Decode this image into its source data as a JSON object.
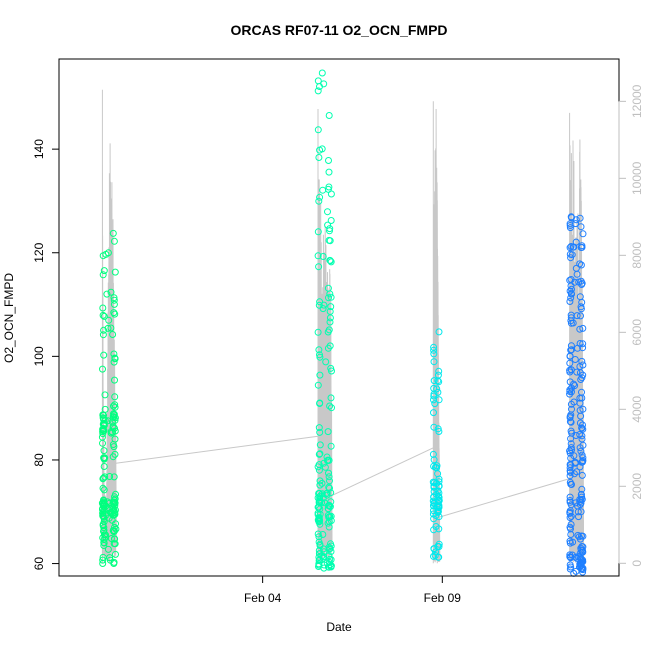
{
  "chart_data": {
    "type": "scatter",
    "title": "ORCAS RF07-11 O2_OCN_FMPD",
    "xlabel": "Date",
    "ylabel": "O2_OCN_FMPD",
    "x_axis": {
      "type": "date",
      "ticks": [
        {
          "value": "2016-02-04",
          "label": "Feb 04"
        },
        {
          "value": "2016-02-09",
          "label": "Feb 09"
        }
      ],
      "xlim": [
        "2016-01-29T08:00",
        "2016-02-13T22:00"
      ]
    },
    "y_axis_left": {
      "ticks": [
        60,
        80,
        100,
        120,
        140
      ],
      "ylim": [
        57.6,
        157.4
      ]
    },
    "y_axis_right": {
      "ticks": [
        0,
        2000,
        4000,
        6000,
        8000,
        10000,
        12000
      ],
      "ylim": [
        -330,
        13100
      ],
      "color": "#bfbfbf"
    },
    "grid": false,
    "legend": "none",
    "colors": {
      "rf07": "#00ff7f",
      "rf08": "#00ffb0",
      "rf10": "#00e8ec",
      "rf11": "#1e7fff",
      "altitude_line": "#c8c8c8"
    },
    "series": [
      {
        "color_key": "rf07",
        "t_start": "2016-01-30T13:00",
        "t_end": "2016-01-30T22:00",
        "y_min": 60,
        "y_max": 125,
        "bands": [
          [
            60,
            62,
            8
          ],
          [
            62,
            72,
            45
          ],
          [
            69,
            72,
            25
          ],
          [
            72,
            80,
            14
          ],
          [
            80,
            86,
            14
          ],
          [
            85,
            89,
            35
          ],
          [
            89,
            106,
            18
          ],
          [
            104,
            112,
            10
          ],
          [
            112,
            125,
            10
          ]
        ]
      },
      {
        "color_key": "rf08",
        "t_start": "2016-02-05T13:00",
        "t_end": "2016-02-05T22:00",
        "y_min": 59,
        "y_max": 155,
        "bands": [
          [
            59,
            63,
            30
          ],
          [
            63,
            68,
            12
          ],
          [
            68,
            74,
            45
          ],
          [
            74,
            80,
            16
          ],
          [
            80,
            95,
            14
          ],
          [
            95,
            115,
            24
          ],
          [
            115,
            128,
            14
          ],
          [
            128,
            140,
            10
          ],
          [
            140,
            155,
            8
          ]
        ]
      },
      {
        "color_key": "rf10",
        "t_start": "2016-02-08T18:00",
        "t_end": "2016-02-08T22:00",
        "y_min": 61,
        "y_max": 107,
        "bands": [
          [
            61,
            66,
            10
          ],
          [
            66,
            70,
            8
          ],
          [
            70,
            76,
            35
          ],
          [
            76,
            85,
            8
          ],
          [
            85,
            97,
            16
          ],
          [
            97,
            107,
            6
          ]
        ]
      },
      {
        "color_key": "rf11",
        "t_start": "2016-02-12T13:00",
        "t_end": "2016-02-12T22:00",
        "y_min": 58,
        "y_max": 127,
        "bands": [
          [
            58,
            62,
            35
          ],
          [
            62,
            70,
            25
          ],
          [
            70,
            85,
            55
          ],
          [
            85,
            100,
            45
          ],
          [
            100,
            115,
            35
          ],
          [
            115,
            127,
            25
          ]
        ]
      }
    ],
    "altitude_line": {
      "axis": "right",
      "color_key": "altitude_line",
      "connectors": [
        {
          "from": [
            "2016-01-30T22:00",
            2600
          ],
          "to": [
            "2016-02-05T13:00",
            3300
          ]
        },
        {
          "from": [
            "2016-02-05T19:00",
            1700
          ],
          "to": [
            "2016-02-08T18:00",
            3000
          ]
        },
        {
          "from": [
            "2016-02-08T22:00",
            1200
          ],
          "to": [
            "2016-02-12T13:00",
            2200
          ]
        }
      ],
      "flights": [
        {
          "t_start": "2016-01-30T13:00",
          "t_end": "2016-01-30T22:00",
          "peak": 12300,
          "spikes": [
            [
              0.0,
              12300
            ],
            [
              0.05,
              6000
            ],
            [
              0.12,
              2200
            ],
            [
              0.3,
              1500
            ],
            [
              0.5,
              11900
            ],
            [
              0.6,
              12000
            ],
            [
              0.78,
              9000
            ],
            [
              0.9,
              7500
            ],
            [
              1.0,
              3000
            ]
          ]
        },
        {
          "t_start": "2016-02-05T13:00",
          "t_end": "2016-02-05T22:00",
          "peak": 11800,
          "spikes": [
            [
              0.0,
              11800
            ],
            [
              0.1,
              11600
            ],
            [
              0.2,
              9500
            ],
            [
              0.35,
              8000
            ],
            [
              0.5,
              10500
            ],
            [
              0.65,
              8200
            ],
            [
              0.8,
              7000
            ],
            [
              0.9,
              9200
            ],
            [
              1.0,
              5000
            ]
          ]
        },
        {
          "t_start": "2016-02-08T18:00",
          "t_end": "2016-02-08T22:00",
          "peak": 12000,
          "spikes": [
            [
              0.0,
              8000
            ],
            [
              0.2,
              11600
            ],
            [
              0.5,
              12000
            ],
            [
              0.7,
              9000
            ],
            [
              1.0,
              3000
            ]
          ]
        },
        {
          "t_start": "2016-02-12T13:00",
          "t_end": "2016-02-12T22:00",
          "peak": 11700,
          "spikes": [
            [
              0.0,
              11700
            ],
            [
              0.25,
              11500
            ],
            [
              0.45,
              9500
            ],
            [
              0.6,
              9000
            ],
            [
              0.75,
              11200
            ],
            [
              0.85,
              11300
            ],
            [
              1.0,
              4500
            ]
          ]
        }
      ]
    }
  }
}
